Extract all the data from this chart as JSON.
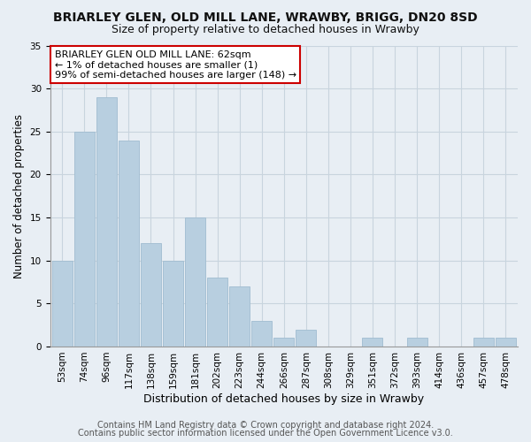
{
  "title": "BRIARLEY GLEN, OLD MILL LANE, WRAWBY, BRIGG, DN20 8SD",
  "subtitle": "Size of property relative to detached houses in Wrawby",
  "xlabel": "Distribution of detached houses by size in Wrawby",
  "ylabel": "Number of detached properties",
  "bar_labels": [
    "53sqm",
    "74sqm",
    "96sqm",
    "117sqm",
    "138sqm",
    "159sqm",
    "181sqm",
    "202sqm",
    "223sqm",
    "244sqm",
    "266sqm",
    "287sqm",
    "308sqm",
    "329sqm",
    "351sqm",
    "372sqm",
    "393sqm",
    "414sqm",
    "436sqm",
    "457sqm",
    "478sqm"
  ],
  "bar_values": [
    10,
    25,
    29,
    24,
    12,
    10,
    15,
    8,
    7,
    3,
    1,
    2,
    0,
    0,
    1,
    0,
    1,
    0,
    0,
    1,
    1
  ],
  "bar_color": "#b8cfe0",
  "bar_edge_color": "#a0bcd0",
  "annotation_title": "BRIARLEY GLEN OLD MILL LANE: 62sqm",
  "annotation_line1": "← 1% of detached houses are smaller (1)",
  "annotation_line2": "99% of semi-detached houses are larger (148) →",
  "annotation_box_facecolor": "#ffffff",
  "annotation_box_edgecolor": "#cc0000",
  "ylim": [
    0,
    35
  ],
  "yticks": [
    0,
    5,
    10,
    15,
    20,
    25,
    30,
    35
  ],
  "footer1": "Contains HM Land Registry data © Crown copyright and database right 2024.",
  "footer2": "Contains public sector information licensed under the Open Government Licence v3.0.",
  "fig_facecolor": "#e8eef4",
  "plot_facecolor": "#e8eef4",
  "title_fontsize": 10,
  "subtitle_fontsize": 9,
  "ylabel_fontsize": 8.5,
  "xlabel_fontsize": 9,
  "tick_fontsize": 7.5,
  "footer_fontsize": 7,
  "annotation_fontsize": 8,
  "grid_color": "#c8d4de",
  "spine_color": "#999999"
}
